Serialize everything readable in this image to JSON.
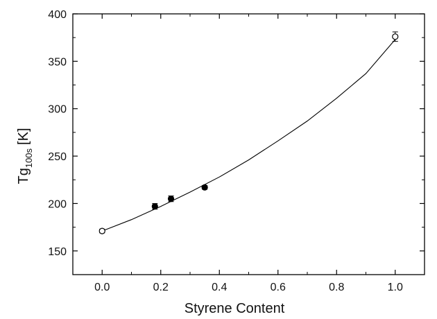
{
  "chart_data": {
    "type": "scatter",
    "xlabel": "Styrene Content",
    "ylabel": {
      "main": "Tg",
      "subscript": "100s",
      "unit": "[K]"
    },
    "xlim": [
      -0.1,
      1.1
    ],
    "ylim": [
      125,
      400
    ],
    "x_ticks": [
      "0.0",
      "0.2",
      "0.4",
      "0.6",
      "0.8",
      "1.0"
    ],
    "x_tick_values": [
      0.0,
      0.2,
      0.4,
      0.6,
      0.8,
      1.0
    ],
    "y_ticks": [
      "150",
      "200",
      "250",
      "300",
      "350",
      "400"
    ],
    "y_tick_values": [
      150,
      200,
      250,
      300,
      350,
      400
    ],
    "grid": false,
    "series": [
      {
        "marker": "open-circle",
        "x": [
          0.0,
          1.0
        ],
        "y": [
          171,
          376
        ],
        "yerr": [
          2,
          5
        ]
      },
      {
        "marker": "filled-circle",
        "x": [
          0.18,
          0.235,
          0.35
        ],
        "y": [
          197,
          205,
          217
        ],
        "yerr": [
          3,
          3,
          2
        ]
      },
      {
        "marker": "line",
        "x": [
          0.0,
          0.1,
          0.2,
          0.3,
          0.4,
          0.5,
          0.6,
          0.7,
          0.8,
          0.9,
          1.0
        ],
        "y": [
          171,
          183,
          197,
          212,
          228,
          246,
          266,
          287,
          311,
          337,
          373
        ]
      }
    ]
  }
}
